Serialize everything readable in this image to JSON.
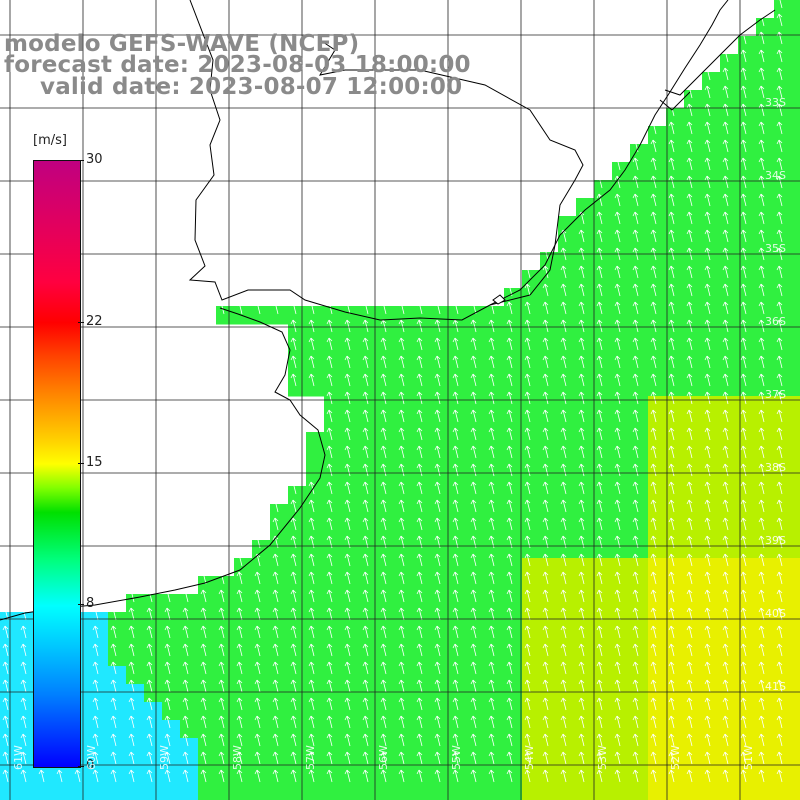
{
  "title": {
    "line1": "modelo GEFS-WAVE (NCEP)",
    "line2": "forecast date: 2023-08-03 18:00:00",
    "line3": "valid date: 2023-08-07 12:00:00"
  },
  "colorbar": {
    "units": "[m/s]",
    "ticks": [
      "30",
      "22",
      "15",
      "8",
      "0"
    ],
    "tick_values": [
      30,
      22,
      15,
      8,
      0
    ],
    "colors": {
      "low": "#0000ff",
      "v8": "#00ffff",
      "v12": "#00e000",
      "v15": "#ffff00",
      "v22": "#ff4000",
      "v30": "#c00080"
    }
  },
  "lat_labels": [
    "33S",
    "34S",
    "35S",
    "36S",
    "37S",
    "38S",
    "39S",
    "40S",
    "41S"
  ],
  "lon_labels": [
    "61W",
    "60W",
    "59W",
    "58W",
    "57W",
    "56W",
    "55W",
    "54W",
    "53W",
    "52W",
    "51W"
  ],
  "map": {
    "field_colors": {
      "cyan": "#20e8ff",
      "green": "#30f040",
      "yellowgreen": "#b8f000",
      "yellow": "#e8f000",
      "land": "#ffffff",
      "coast": "#000000",
      "grid": "#222222"
    }
  }
}
